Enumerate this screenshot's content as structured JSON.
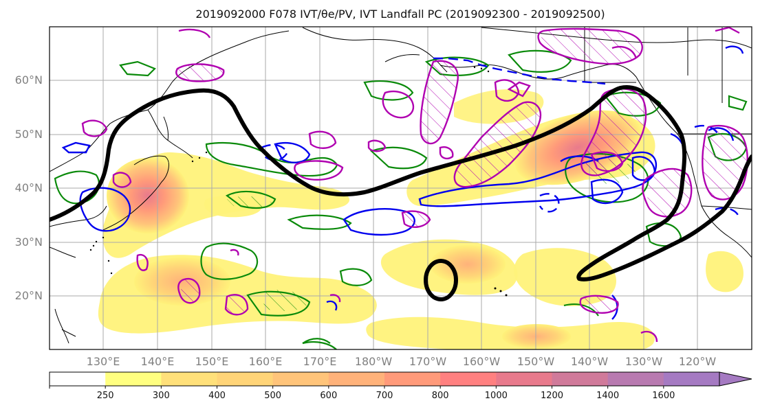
{
  "title": "2019092000 F078 IVT/θe/PV, IVT Landfall PC (2019092300 - 2019092500)",
  "map": {
    "lat_labels": [
      "60°N",
      "50°N",
      "40°N",
      "30°N",
      "20°N"
    ],
    "lon_labels": [
      "130°E",
      "140°E",
      "150°E",
      "160°E",
      "170°E",
      "180°W",
      "170°W",
      "160°W",
      "150°W",
      "140°W",
      "130°W",
      "120°W"
    ],
    "grid": true,
    "lat_range": [
      10,
      70
    ],
    "lon_range_deg_east": [
      120,
      250
    ],
    "fields": [
      "IVT shading",
      "theta_e contours (blue)",
      "PV contours (magenta)",
      "green contours",
      "IVT Landfall PC (black)"
    ]
  },
  "colorbar": {
    "levels": [
      "250",
      "300",
      "400",
      "500",
      "600",
      "700",
      "800",
      "1000",
      "1200",
      "1400",
      "1600"
    ],
    "colors": [
      "#ffffff",
      "#ffff80",
      "#ffe07a",
      "#ffd478",
      "#ffc47a",
      "#ffb27a",
      "#ff9a7a",
      "#ff8080",
      "#e87a8c",
      "#d07a9a",
      "#b87ab0",
      "#a57ac2"
    ],
    "extend": "max"
  },
  "colors": {
    "ivt_light": "#fff27a",
    "ivt_mid": "#ffb27a",
    "ivt_high": "#f0787a",
    "pv": "#b000b0",
    "theta_e": "#0000ee",
    "green": "#0a8a0a",
    "landfall_pc": "#000000",
    "coast": "#000000",
    "grid": "#aaaaaa"
  }
}
